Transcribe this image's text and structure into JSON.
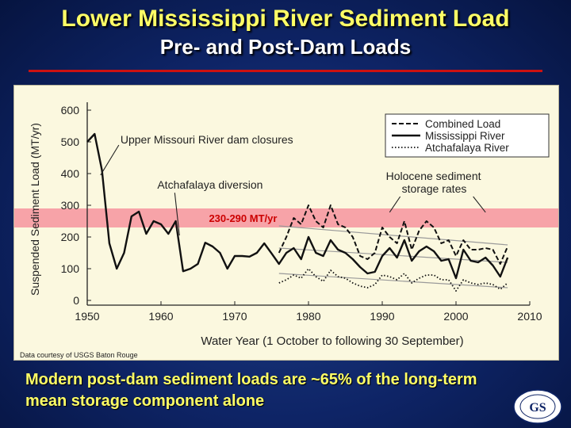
{
  "slide": {
    "title": "Lower Mississippi River Sediment Load",
    "subtitle": "Pre- and Post-Dam Loads",
    "credit": "Data courtesy of USGS Baton Rouge",
    "caption": "Modern post-dam sediment loads are ~65% of the long-term mean storage component alone",
    "logo_text": "GEOLOGICAL SOCIETY",
    "colors": {
      "title": "#ffff66",
      "background": "#0e2466",
      "rule": "#cc1111",
      "band": "#f7a3a8"
    }
  },
  "chart_data": {
    "type": "line",
    "title": "",
    "xlabel": "Water Year (1 October to following 30 September)",
    "ylabel": "Suspended Sediment Load (MT/yr)",
    "xlim": [
      1950,
      2010
    ],
    "ylim": [
      0,
      600
    ],
    "xticks": [
      1950,
      1960,
      1970,
      1980,
      1990,
      2000,
      2010
    ],
    "yticks": [
      0,
      100,
      200,
      300,
      400,
      500,
      600
    ],
    "grid": false,
    "legend_position": "top-right",
    "band": {
      "range": [
        230,
        290
      ],
      "label": "230-290 MT/yr",
      "color": "#f7a3a8"
    },
    "annotations": [
      {
        "text": "Upper Missouri River dam closures",
        "x": 1954.5,
        "y": 495,
        "target": [
          1951.8,
          395
        ]
      },
      {
        "text": "Atchafalaya diversion",
        "x": 1959.5,
        "y": 352,
        "target": [
          1962.5,
          205
        ]
      },
      {
        "text": "Holocene sediment storage rates",
        "x": 1990.5,
        "y": 380,
        "targets": [
          [
            1991,
            278
          ],
          [
            2004,
            278
          ]
        ]
      }
    ],
    "series": [
      {
        "name": "Combined Load",
        "dash": "dashed",
        "x": [
          1976,
          1977,
          1978,
          1979,
          1980,
          1981,
          1982,
          1983,
          1984,
          1985,
          1986,
          1987,
          1988,
          1989,
          1990,
          1991,
          1992,
          1993,
          1994,
          1995,
          1996,
          1997,
          1998,
          1999,
          2000,
          2001,
          2002,
          2003,
          2004,
          2005,
          2006,
          2007
        ],
        "values": [
          150,
          200,
          260,
          240,
          300,
          250,
          230,
          300,
          240,
          230,
          200,
          140,
          130,
          150,
          230,
          200,
          180,
          250,
          160,
          220,
          250,
          230,
          180,
          190,
          140,
          190,
          160,
          160,
          165,
          160,
          115,
          170
        ]
      },
      {
        "name": "Mississippi River",
        "dash": "solid",
        "x": [
          1950,
          1951,
          1952,
          1953,
          1954,
          1955,
          1956,
          1957,
          1958,
          1959,
          1960,
          1961,
          1962,
          1963,
          1964,
          1965,
          1966,
          1967,
          1968,
          1969,
          1970,
          1971,
          1972,
          1973,
          1974,
          1975,
          1976,
          1977,
          1978,
          1979,
          1980,
          1981,
          1982,
          1983,
          1984,
          1985,
          1986,
          1987,
          1988,
          1989,
          1990,
          1991,
          1992,
          1993,
          1994,
          1995,
          1996,
          1997,
          1998,
          1999,
          2000,
          2001,
          2002,
          2003,
          2004,
          2005,
          2006,
          2007
        ],
        "values": [
          500,
          525,
          410,
          180,
          100,
          150,
          265,
          280,
          210,
          250,
          240,
          210,
          250,
          92,
          100,
          115,
          182,
          170,
          150,
          100,
          140,
          140,
          138,
          150,
          180,
          148,
          115,
          150,
          165,
          130,
          200,
          150,
          140,
          190,
          160,
          150,
          130,
          105,
          85,
          90,
          140,
          165,
          135,
          190,
          125,
          155,
          170,
          155,
          125,
          130,
          70,
          160,
          125,
          120,
          135,
          110,
          75,
          135
        ]
      },
      {
        "name": "Atchafalaya River",
        "dash": "dotted",
        "x": [
          1976,
          1977,
          1978,
          1979,
          1980,
          1981,
          1982,
          1983,
          1984,
          1985,
          1986,
          1987,
          1988,
          1989,
          1990,
          1991,
          1992,
          1993,
          1994,
          1995,
          1996,
          1997,
          1998,
          1999,
          2000,
          2001,
          2002,
          2003,
          2004,
          2005,
          2006,
          2007
        ],
        "values": [
          55,
          65,
          80,
          70,
          100,
          75,
          60,
          95,
          75,
          70,
          55,
          45,
          40,
          50,
          80,
          75,
          65,
          85,
          55,
          70,
          80,
          80,
          65,
          65,
          30,
          65,
          55,
          50,
          55,
          50,
          35,
          55
        ]
      }
    ],
    "trend_lines": [
      {
        "of": "Combined Load",
        "x": [
          1976,
          2007
        ],
        "values": [
          235,
          175
        ]
      },
      {
        "of": "Mississippi River",
        "x": [
          1976,
          2007
        ],
        "values": [
          165,
          120
        ]
      },
      {
        "of": "Atchafalaya River",
        "x": [
          1976,
          2007
        ],
        "values": [
          85,
          40
        ]
      }
    ]
  }
}
